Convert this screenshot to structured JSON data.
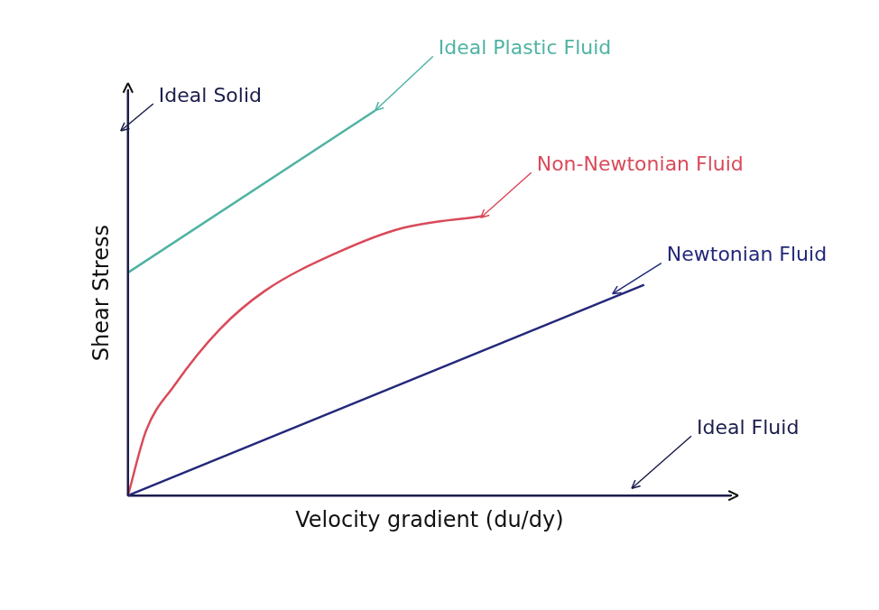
{
  "chart_data": {
    "type": "line",
    "x_label": "Velocity gradient (du/dy)",
    "y_label": "Shear Stress",
    "xlim": [
      0,
      10
    ],
    "ylim": [
      0,
      10
    ],
    "xticks": [],
    "yticks": [],
    "grid": false,
    "tick_labels": false,
    "series": [
      {
        "name": "Ideal Solid",
        "color": "#1b1d4a",
        "x": [
          0,
          0
        ],
        "values": [
          0,
          10
        ]
      },
      {
        "name": "Ideal Plastic Fluid",
        "color": "#4fb3a3",
        "x": [
          0,
          4.1
        ],
        "values": [
          5.5,
          9.5
        ]
      },
      {
        "name": "Non-Newtonian Fluid",
        "color": "#d94a5a",
        "x": [
          0,
          0.3,
          0.76,
          1.52,
          2.27,
          3.48,
          4.55,
          5.91
        ],
        "values": [
          0,
          1.6,
          2.7,
          4.1,
          5.05,
          6.0,
          6.6,
          6.9
        ]
      },
      {
        "name": "Newtonian Fluid",
        "color": "#23287a",
        "x": [
          0,
          8.56
        ],
        "values": [
          0,
          5.2
        ]
      },
      {
        "name": "Ideal Fluid",
        "color": "#1b1d4a",
        "x": [
          0,
          10
        ],
        "values": [
          0,
          0
        ]
      }
    ]
  }
}
